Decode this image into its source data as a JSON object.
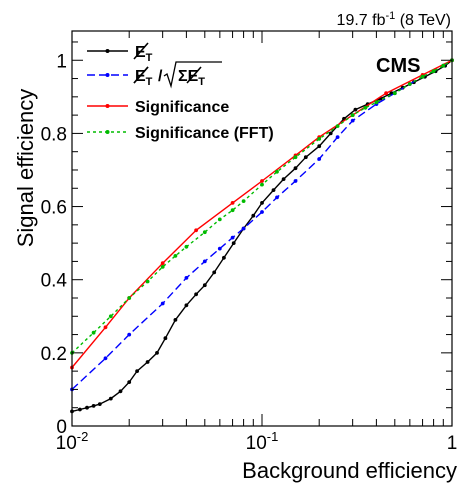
{
  "figure": {
    "lumi_text": "19.7 fb",
    "lumi_sup": "-1",
    "lumi_energy": " (8 TeV)",
    "experiment": "CMS"
  },
  "chart_data": {
    "type": "line",
    "xlabel": "Background efficiency",
    "ylabel": "Signal efficiency",
    "xscale": "log",
    "xlim": [
      0.01,
      1
    ],
    "ylim": [
      0,
      1.08
    ],
    "x_ticks": [
      0.01,
      0.1,
      1
    ],
    "x_tick_labels": [
      {
        "base": "10",
        "exp": "-2"
      },
      {
        "base": "10",
        "exp": "-1"
      },
      {
        "base": "1",
        "exp": ""
      }
    ],
    "y_ticks": [
      0,
      0.2,
      0.4,
      0.6,
      0.8,
      1
    ],
    "y_tick_labels": [
      "0",
      "0.2",
      "0.4",
      "0.6",
      "0.8",
      "1"
    ],
    "legend_position": "top-left",
    "series": [
      {
        "name": "E_T (missing transverse energy)",
        "legend_parts": {
          "main": "E",
          "sub": "T"
        },
        "color": "#000000",
        "dash": "",
        "x": [
          0.01,
          0.011,
          0.012,
          0.013,
          0.014,
          0.016,
          0.018,
          0.02,
          0.022,
          0.025,
          0.028,
          0.031,
          0.035,
          0.04,
          0.045,
          0.05,
          0.056,
          0.063,
          0.071,
          0.08,
          0.09,
          0.1,
          0.115,
          0.13,
          0.15,
          0.17,
          0.2,
          0.23,
          0.27,
          0.31,
          0.36,
          0.42,
          0.48,
          0.55,
          0.63,
          0.72,
          0.82,
          0.92,
          1.0
        ],
        "y": [
          0.04,
          0.045,
          0.05,
          0.055,
          0.06,
          0.075,
          0.095,
          0.12,
          0.15,
          0.175,
          0.2,
          0.24,
          0.29,
          0.33,
          0.36,
          0.385,
          0.42,
          0.46,
          0.5,
          0.54,
          0.575,
          0.61,
          0.645,
          0.675,
          0.705,
          0.735,
          0.765,
          0.8,
          0.84,
          0.865,
          0.88,
          0.895,
          0.91,
          0.925,
          0.94,
          0.955,
          0.97,
          0.985,
          1.0
        ]
      },
      {
        "name": "E_T / sqrt(sum E_T)",
        "legend_parts": {
          "main": "E",
          "sub": "T",
          "root": "ΣE",
          "root_sub": "T"
        },
        "color": "#0000ff",
        "dash": "8,4",
        "x": [
          0.01,
          0.015,
          0.02,
          0.03,
          0.04,
          0.05,
          0.06,
          0.07,
          0.08,
          0.1,
          0.12,
          0.15,
          0.2,
          0.25,
          0.3,
          0.4,
          0.5,
          0.6,
          0.7,
          0.8,
          0.9,
          1.0
        ],
        "y": [
          0.1,
          0.185,
          0.25,
          0.335,
          0.405,
          0.45,
          0.485,
          0.515,
          0.54,
          0.585,
          0.625,
          0.67,
          0.73,
          0.79,
          0.835,
          0.88,
          0.91,
          0.935,
          0.955,
          0.97,
          0.985,
          1.0
        ]
      },
      {
        "name": "Significance",
        "legend_parts": {
          "main": "Significance"
        },
        "color": "#ff0000",
        "dash": "",
        "x": [
          0.01,
          0.015,
          0.02,
          0.03,
          0.045,
          0.07,
          0.1,
          0.15,
          0.2,
          0.3,
          0.45,
          0.7,
          1.0
        ],
        "y": [
          0.16,
          0.27,
          0.35,
          0.445,
          0.535,
          0.61,
          0.67,
          0.74,
          0.79,
          0.85,
          0.91,
          0.96,
          1.0
        ]
      },
      {
        "name": "Significance (FFT)",
        "legend_parts": {
          "main": "Significance (FFT)"
        },
        "color": "#00bb00",
        "dash": "3,3",
        "x": [
          0.01,
          0.013,
          0.016,
          0.02,
          0.025,
          0.03,
          0.035,
          0.04,
          0.05,
          0.06,
          0.07,
          0.08,
          0.1,
          0.12,
          0.15,
          0.2,
          0.25,
          0.3,
          0.35,
          0.4,
          0.5,
          0.6,
          0.7,
          0.8,
          0.9,
          1.0
        ],
        "y": [
          0.2,
          0.255,
          0.3,
          0.35,
          0.395,
          0.435,
          0.465,
          0.49,
          0.53,
          0.565,
          0.59,
          0.615,
          0.66,
          0.695,
          0.735,
          0.785,
          0.82,
          0.85,
          0.87,
          0.885,
          0.91,
          0.935,
          0.955,
          0.97,
          0.985,
          1.0
        ]
      }
    ]
  }
}
